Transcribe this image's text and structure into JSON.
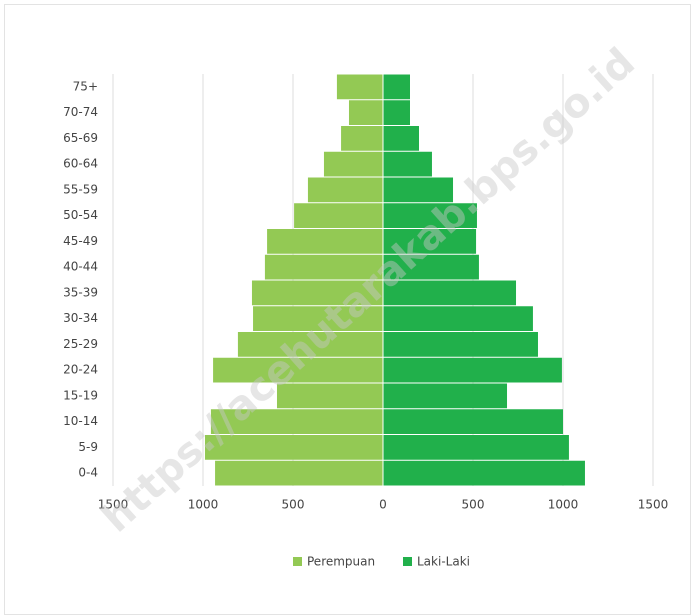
{
  "chart_data": {
    "type": "pyramid",
    "categories": [
      "75+",
      "70-74",
      "65-69",
      "60-64",
      "55-59",
      "50-54",
      "45-49",
      "40-44",
      "35-39",
      "30-34",
      "25-29",
      "20-24",
      "15-19",
      "10-14",
      "5-9",
      "0-4"
    ],
    "series": [
      {
        "name": "Perempuan",
        "color": "#93c954",
        "values": [
          -256,
          -189,
          -233,
          -328,
          -417,
          -494,
          -644,
          -656,
          -728,
          -722,
          -806,
          -944,
          -589,
          -956,
          -989,
          -933
        ]
      },
      {
        "name": "Laki-Laki",
        "color": "#21b04b",
        "values": [
          150,
          150,
          200,
          272,
          389,
          522,
          517,
          533,
          739,
          833,
          861,
          994,
          689,
          1000,
          1033,
          1122
        ]
      }
    ],
    "xlim": [
      -1500,
      1500
    ],
    "xticks": [
      {
        "value": -1500,
        "label": "1500"
      },
      {
        "value": -1000,
        "label": "1000"
      },
      {
        "value": -500,
        "label": "500"
      },
      0,
      500,
      1000,
      1500
    ],
    "grid": true,
    "legend": "bottom",
    "watermark": "https://acehutarakab.bps.go.id"
  }
}
